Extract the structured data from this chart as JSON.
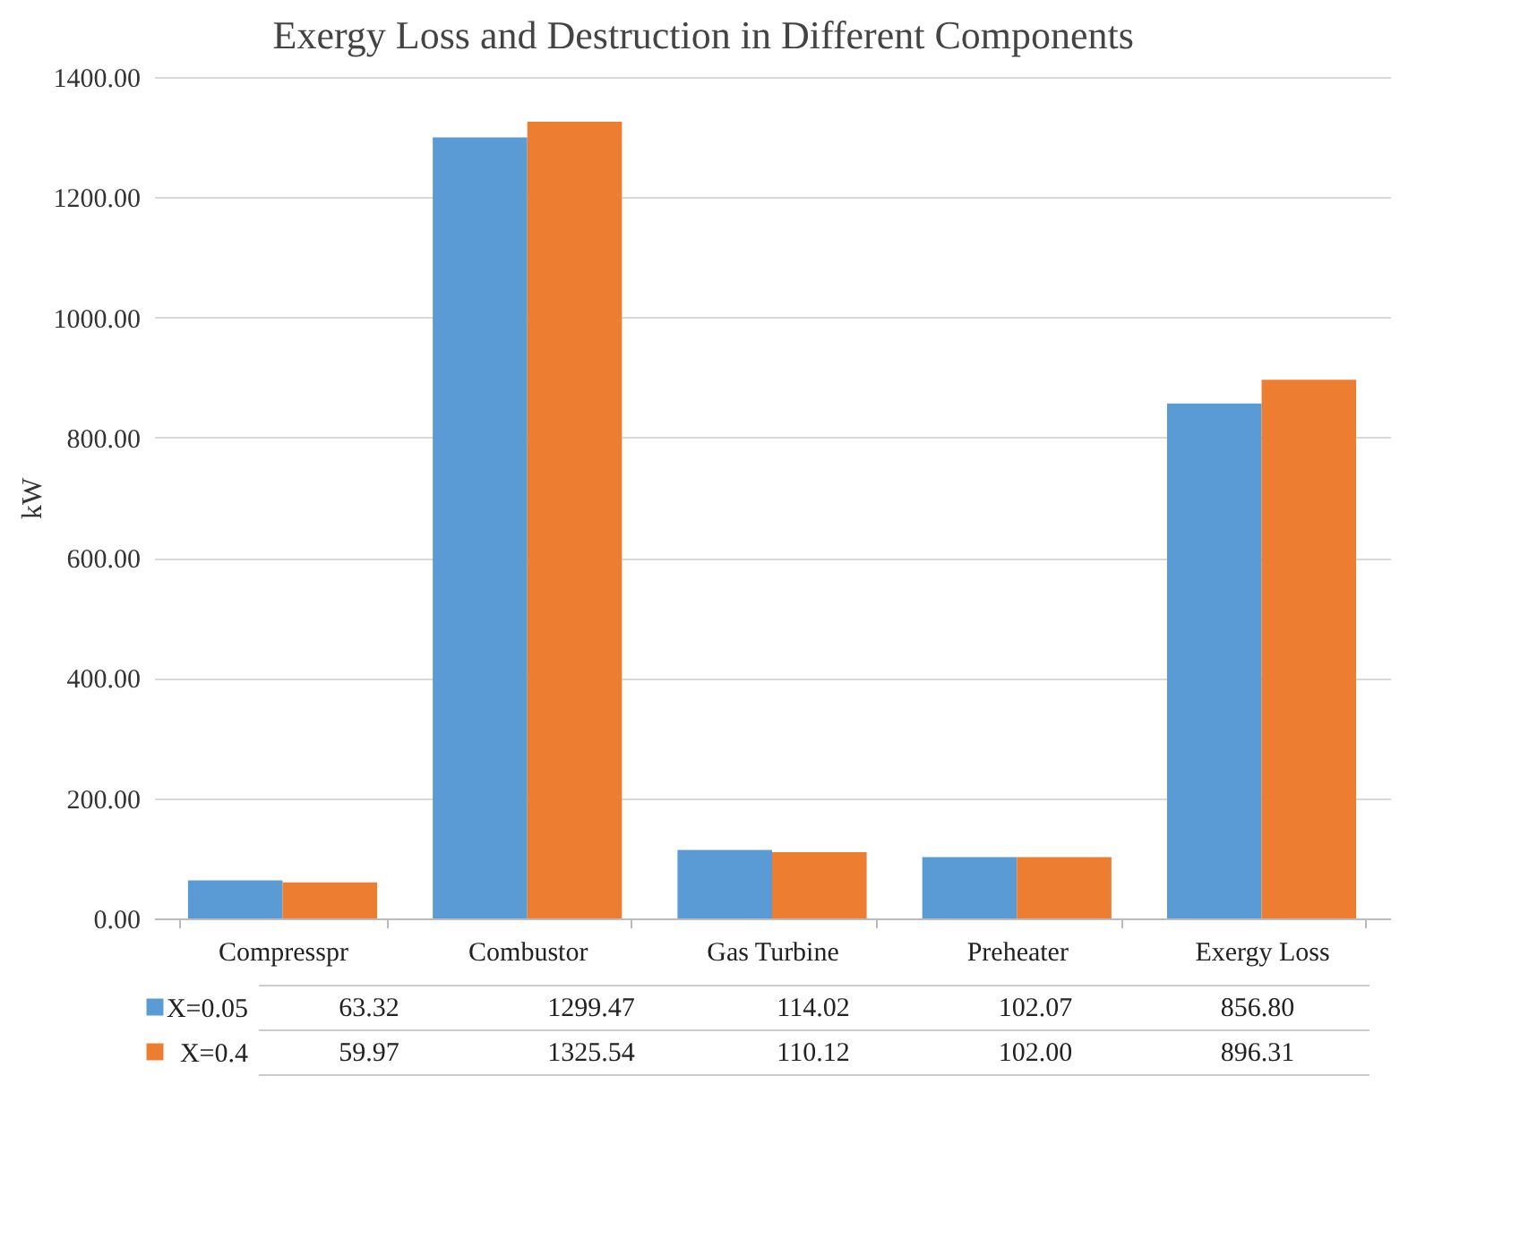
{
  "chart_data": {
    "type": "bar",
    "title": "Exergy Loss and Destruction in Different Components",
    "ylabel": "kW",
    "categories": [
      "Compresspr",
      "Combustor",
      "Gas Turbine",
      "Preheater",
      "Exergy Loss"
    ],
    "series": [
      {
        "name": "X=0.05",
        "color": "#5b9bd5",
        "values": [
          63.32,
          1299.47,
          114.02,
          102.07,
          856.8
        ],
        "value_labels": [
          "63.32",
          "1299.47",
          "114.02",
          "102.07",
          "856.80"
        ]
      },
      {
        "name": "X=0.4",
        "color": "#ed7d31",
        "values": [
          59.97,
          1325.54,
          110.12,
          102.0,
          896.31
        ],
        "value_labels": [
          "59.97",
          "1325.54",
          "110.12",
          "102.00",
          "896.31"
        ]
      }
    ],
    "ylim": [
      0,
      1400
    ],
    "yticks": [
      {
        "value": 0,
        "label": "0.00"
      },
      {
        "value": 200,
        "label": "200.00"
      },
      {
        "value": 400,
        "label": "400.00"
      },
      {
        "value": 600,
        "label": "600.00"
      },
      {
        "value": 800,
        "label": "800.00"
      },
      {
        "value": 1000,
        "label": "1000.00"
      },
      {
        "value": 1200,
        "label": "1200.00"
      },
      {
        "value": 1400,
        "label": "1400.00"
      }
    ],
    "grid": "y",
    "legend": "bottom"
  }
}
